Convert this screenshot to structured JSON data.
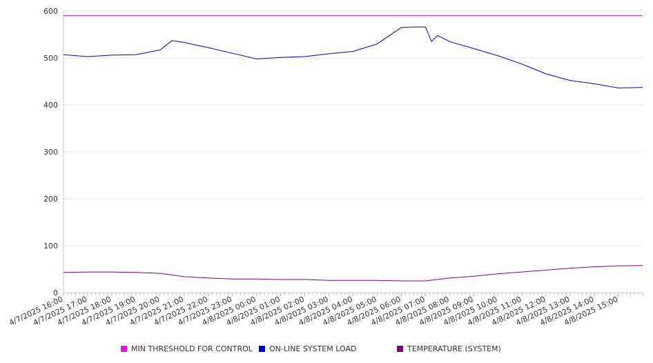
{
  "chart_data": {
    "type": "line",
    "y_ticks": [
      "0",
      "100",
      "200",
      "300",
      "400",
      "500",
      "600"
    ],
    "ylim": [
      0,
      600
    ],
    "grid": true,
    "legend_position": "bottom",
    "x_tick_labels": [
      "4/7/2025 16:00",
      "4/7/2025 17:00",
      "4/7/2025 18:00",
      "4/7/2025 19:00",
      "4/7/2025 20:00",
      "4/7/2025 21:00",
      "4/7/2025 22:00",
      "4/7/2025 23:00",
      "4/8/2025 00:00",
      "4/8/2025 01:00",
      "4/8/2025 02:00",
      "4/8/2025 03:00",
      "4/8/2025 04:00",
      "4/8/2025 05:00",
      "4/8/2025 06:00",
      "4/8/2025 07:00",
      "4/8/2025 08:00",
      "4/8/2025 09:00",
      "4/8/2025 10:00",
      "4/8/2025 11:00",
      "4/8/2025 12:00",
      "4/8/2025 13:00",
      "4/8/2025 14:00",
      "4/8/2025 15:00"
    ],
    "series": [
      {
        "name": "MIN THRESHOLD FOR CONTROL",
        "color": "#cc00cc",
        "x": [
          "4/7/2025 16:00",
          "4/8/2025 16:00"
        ],
        "y": [
          590,
          590
        ]
      },
      {
        "name": "ON-LINE SYSTEM LOAD",
        "color": "#0000cc",
        "x": [
          "4/7/2025 16:00",
          "4/7/2025 17:00",
          "4/7/2025 18:00",
          "4/7/2025 19:00",
          "4/7/2025 20:00",
          "4/7/2025 20:30",
          "4/7/2025 21:00",
          "4/7/2025 22:00",
          "4/7/2025 23:00",
          "4/8/2025 00:00",
          "4/8/2025 01:00",
          "4/8/2025 02:00",
          "4/8/2025 03:00",
          "4/8/2025 04:00",
          "4/8/2025 05:00",
          "4/8/2025 06:00",
          "4/8/2025 06:30",
          "4/8/2025 07:00",
          "4/8/2025 07:15",
          "4/8/2025 07:30",
          "4/8/2025 08:00",
          "4/8/2025 09:00",
          "4/8/2025 10:00",
          "4/8/2025 11:00",
          "4/8/2025 12:00",
          "4/8/2025 13:00",
          "4/8/2025 14:00",
          "4/8/2025 15:00",
          "4/8/2025 16:00"
        ],
        "y": [
          507,
          503,
          506,
          507,
          517,
          537,
          533,
          522,
          510,
          498,
          501,
          503,
          509,
          514,
          530,
          565,
          566,
          566,
          535,
          548,
          535,
          520,
          505,
          487,
          466,
          452,
          445,
          436,
          437
        ]
      },
      {
        "name": "TEMPERATURE (SYSTEM)",
        "color": "#800080",
        "x": [
          "4/7/2025 16:00",
          "4/7/2025 17:00",
          "4/7/2025 18:00",
          "4/7/2025 19:00",
          "4/7/2025 20:00",
          "4/7/2025 21:00",
          "4/7/2025 22:00",
          "4/7/2025 23:00",
          "4/8/2025 00:00",
          "4/8/2025 01:00",
          "4/8/2025 02:00",
          "4/8/2025 03:00",
          "4/8/2025 04:00",
          "4/8/2025 05:00",
          "4/8/2025 06:00",
          "4/8/2025 07:00",
          "4/8/2025 08:00",
          "4/8/2025 09:00",
          "4/8/2025 10:00",
          "4/8/2025 11:00",
          "4/8/2025 12:00",
          "4/8/2025 13:00",
          "4/8/2025 14:00",
          "4/8/2025 15:00",
          "4/8/2025 16:00"
        ],
        "y": [
          43,
          44,
          44,
          43,
          41,
          34,
          31,
          29,
          29,
          28,
          28,
          26,
          26,
          26,
          25,
          25,
          31,
          35,
          40,
          44,
          48,
          52,
          55,
          57,
          58
        ]
      }
    ]
  }
}
